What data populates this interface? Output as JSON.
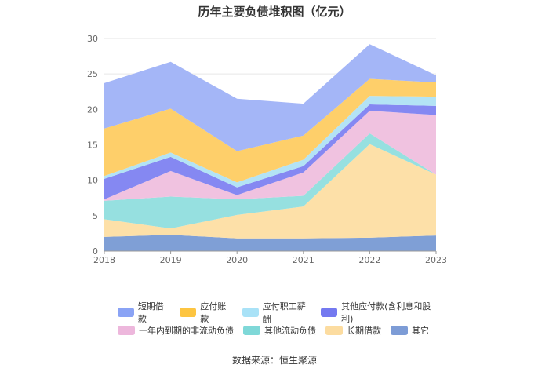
{
  "title": "历年主要负债堆积图（亿元）",
  "source": "数据来源：恒生聚源",
  "chart_data": {
    "type": "area",
    "stacked": true,
    "categories": [
      "2018",
      "2019",
      "2020",
      "2021",
      "2022",
      "2023"
    ],
    "ylim": [
      0,
      30
    ],
    "yticks": [
      "0",
      "5",
      "10",
      "15",
      "20",
      "25",
      "30"
    ],
    "grid": true,
    "legend_position": "bottom",
    "series": [
      {
        "name": "其它",
        "color": "#7f9fd6",
        "values": [
          2.0,
          2.3,
          1.8,
          1.8,
          1.9,
          2.2
        ]
      },
      {
        "name": "长期借款",
        "color": "#fde0a8",
        "values": [
          2.5,
          0.9,
          3.3,
          4.5,
          13.2,
          8.6
        ]
      },
      {
        "name": "其他流动负债",
        "color": "#96e0e0",
        "values": [
          2.6,
          4.5,
          2.2,
          1.5,
          1.5,
          0.0
        ]
      },
      {
        "name": "一年内到期的非流动负债",
        "color": "#f0c2e0",
        "values": [
          0.2,
          3.6,
          0.6,
          3.3,
          3.2,
          8.4
        ]
      },
      {
        "name": "其他应付款(含利息和股利)",
        "color": "#8588f2",
        "values": [
          2.9,
          2.0,
          1.1,
          0.9,
          0.9,
          1.3
        ]
      },
      {
        "name": "应付职工薪酬",
        "color": "#b3e3f5",
        "values": [
          0.4,
          0.6,
          0.7,
          0.9,
          1.2,
          1.3
        ]
      },
      {
        "name": "应付账款",
        "color": "#fecf6a",
        "values": [
          6.7,
          6.2,
          4.4,
          3.4,
          2.4,
          2.0
        ]
      },
      {
        "name": "短期借款",
        "color": "#a4b6f7",
        "values": [
          6.4,
          6.6,
          7.4,
          4.5,
          4.9,
          1.0
        ]
      }
    ]
  },
  "legend": [
    {
      "name": "短期借款",
      "color": "#8aa3f5"
    },
    {
      "name": "应付账款",
      "color": "#fdc541"
    },
    {
      "name": "应付职工薪酬",
      "color": "#a9e2f7"
    },
    {
      "name": "其他应付款(含利息和股利)",
      "color": "#7479f0"
    },
    {
      "name": "一年内到期的非流动负债",
      "color": "#edb7dc"
    },
    {
      "name": "其他流动负债",
      "color": "#7fd8d8"
    },
    {
      "name": "长期借款",
      "color": "#fcdca0"
    },
    {
      "name": "其它",
      "color": "#7d9cd6"
    }
  ]
}
